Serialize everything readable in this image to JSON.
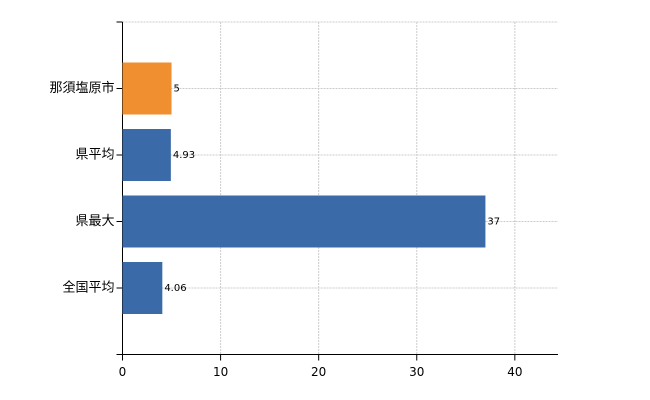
{
  "chart_data": {
    "type": "barh",
    "categories": [
      "那須塩原市",
      "県平均",
      "県最大",
      "全国平均"
    ],
    "values": [
      5,
      4.93,
      37,
      4.06
    ],
    "colors": [
      "#ef8f2f",
      "#3b6aa8",
      "#3b6aa8",
      "#3b6aa8"
    ],
    "xlim": [
      0,
      44.4
    ],
    "xticks": [
      0,
      10,
      20,
      30,
      40
    ],
    "grid": true
  }
}
